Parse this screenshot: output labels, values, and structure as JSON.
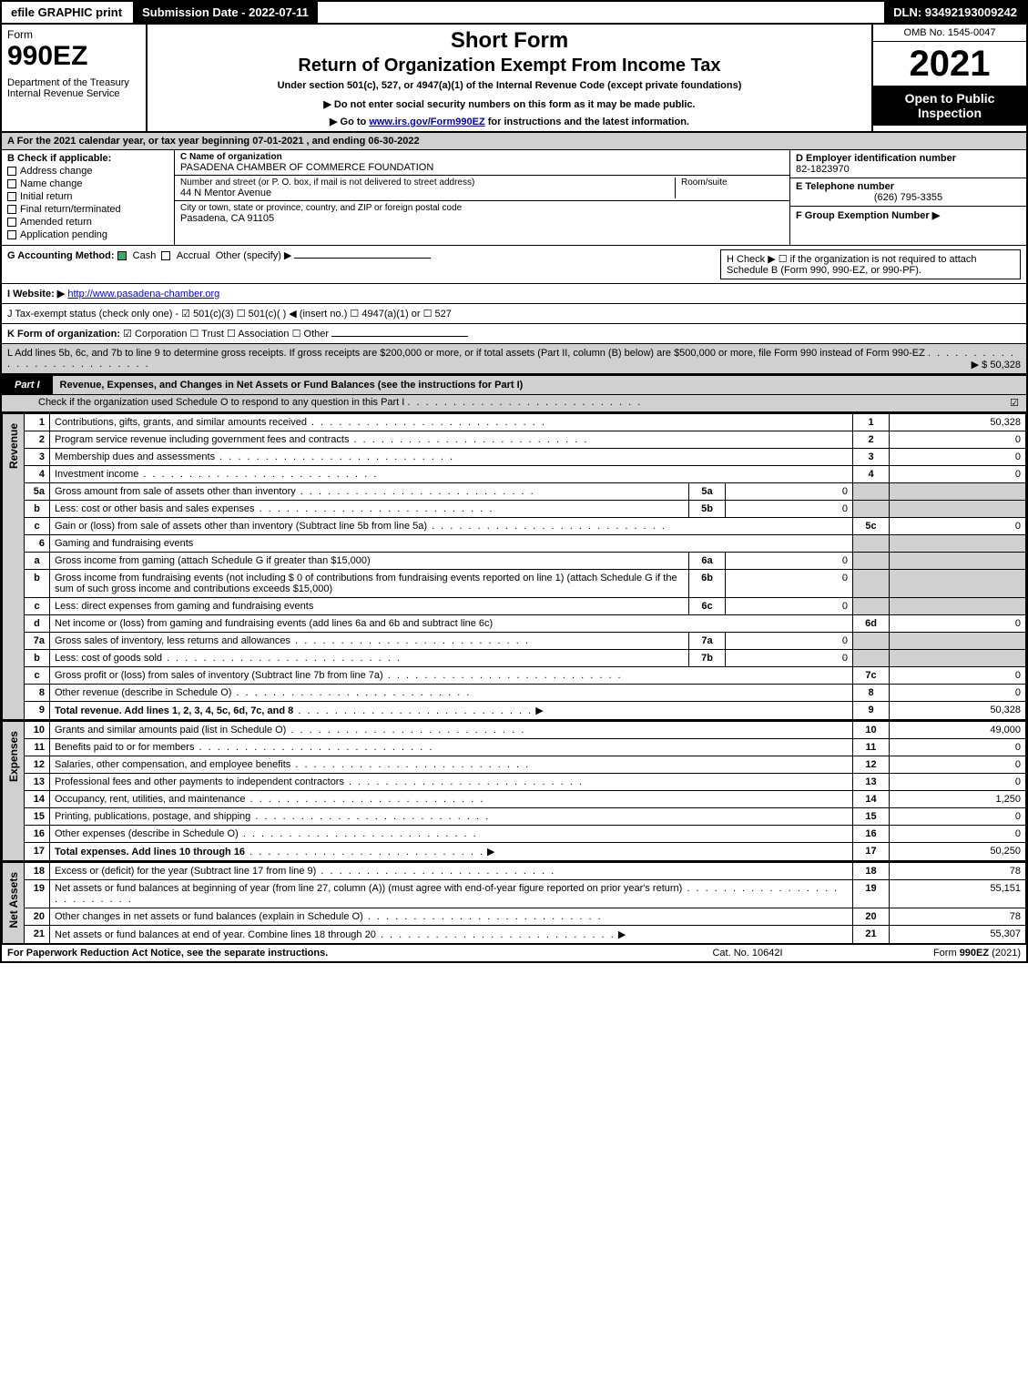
{
  "topbar": {
    "efile": "efile GRAPHIC print",
    "sub_label": "Submission Date - 2022-07-11",
    "dln": "DLN: 93492193009242"
  },
  "header": {
    "form_word": "Form",
    "form_no": "990EZ",
    "dept": "Department of the Treasury\nInternal Revenue Service",
    "short_form": "Short Form",
    "title": "Return of Organization Exempt From Income Tax",
    "under": "Under section 501(c), 527, or 4947(a)(1) of the Internal Revenue Code (except private foundations)",
    "note": "▶ Do not enter social security numbers on this form as it may be made public.",
    "goto_pre": "▶ Go to ",
    "goto_link": "www.irs.gov/Form990EZ",
    "goto_post": " for instructions and the latest information.",
    "omb": "OMB No. 1545-0047",
    "year": "2021",
    "badge": "Open to Public Inspection"
  },
  "secA": "A  For the 2021 calendar year, or tax year beginning 07-01-2021 , and ending 06-30-2022",
  "B": {
    "label": "B  Check if applicable:",
    "opts": [
      "Address change",
      "Name change",
      "Initial return",
      "Final return/terminated",
      "Amended return",
      "Application pending"
    ]
  },
  "C": {
    "name_lbl": "C Name of organization",
    "name": "PASADENA CHAMBER OF COMMERCE FOUNDATION",
    "street_lbl": "Number and street (or P. O. box, if mail is not delivered to street address)",
    "room_lbl": "Room/suite",
    "street": "44 N Mentor Avenue",
    "city_lbl": "City or town, state or province, country, and ZIP or foreign postal code",
    "city": "Pasadena, CA  91105"
  },
  "D": {
    "lbl": "D Employer identification number",
    "val": "82-1823970"
  },
  "E": {
    "lbl": "E Telephone number",
    "val": "(626) 795-3355"
  },
  "F": {
    "lbl": "F Group Exemption Number  ▶",
    "val": ""
  },
  "G": {
    "lbl": "G Accounting Method:",
    "cash": "Cash",
    "accrual": "Accrual",
    "other": "Other (specify) ▶"
  },
  "H": {
    "text": "H   Check ▶  ☐  if the organization is not required to attach Schedule B (Form 990, 990-EZ, or 990-PF)."
  },
  "I": {
    "lbl": "I Website: ▶",
    "val": "http://www.pasadena-chamber.org"
  },
  "J": {
    "text": "J Tax-exempt status (check only one) - ☑ 501(c)(3)  ☐ 501(c)(  ) ◀ (insert no.)  ☐ 4947(a)(1) or  ☐ 527"
  },
  "K": {
    "lbl": "K Form of organization:",
    "opts": "☑ Corporation   ☐ Trust   ☐ Association   ☐ Other"
  },
  "L": {
    "text": "L Add lines 5b, 6c, and 7b to line 9 to determine gross receipts. If gross receipts are $200,000 or more, or if total assets (Part II, column (B) below) are $500,000 or more, file Form 990 instead of Form 990-EZ",
    "amt": "▶ $ 50,328"
  },
  "part1": {
    "tag": "Part I",
    "title": "Revenue, Expenses, and Changes in Net Assets or Fund Balances (see the instructions for Part I)",
    "scheduleO": "Check if the organization used Schedule O to respond to any question in this Part I",
    "scheduleO_checked": "☑"
  },
  "sections": {
    "revenue_label": "Revenue",
    "expenses_label": "Expenses",
    "netassets_label": "Net Assets"
  },
  "rows": {
    "r1": {
      "n": "1",
      "d": "Contributions, gifts, grants, and similar amounts received",
      "ln": "1",
      "v": "50,328"
    },
    "r2": {
      "n": "2",
      "d": "Program service revenue including government fees and contracts",
      "ln": "2",
      "v": "0"
    },
    "r3": {
      "n": "3",
      "d": "Membership dues and assessments",
      "ln": "3",
      "v": "0"
    },
    "r4": {
      "n": "4",
      "d": "Investment income",
      "ln": "4",
      "v": "0"
    },
    "r5a": {
      "n": "5a",
      "d": "Gross amount from sale of assets other than inventory",
      "il": "5a",
      "iv": "0"
    },
    "r5b": {
      "n": "b",
      "d": "Less: cost or other basis and sales expenses",
      "il": "5b",
      "iv": "0"
    },
    "r5c": {
      "n": "c",
      "d": "Gain or (loss) from sale of assets other than inventory (Subtract line 5b from line 5a)",
      "ln": "5c",
      "v": "0"
    },
    "r6": {
      "n": "6",
      "d": "Gaming and fundraising events"
    },
    "r6a": {
      "n": "a",
      "d": "Gross income from gaming (attach Schedule G if greater than $15,000)",
      "il": "6a",
      "iv": "0"
    },
    "r6b": {
      "n": "b",
      "d": "Gross income from fundraising events (not including $ 0            of contributions from fundraising events reported on line 1) (attach Schedule G if the sum of such gross income and contributions exceeds $15,000)",
      "il": "6b",
      "iv": "0"
    },
    "r6c": {
      "n": "c",
      "d": "Less: direct expenses from gaming and fundraising events",
      "il": "6c",
      "iv": "0"
    },
    "r6d": {
      "n": "d",
      "d": "Net income or (loss) from gaming and fundraising events (add lines 6a and 6b and subtract line 6c)",
      "ln": "6d",
      "v": "0"
    },
    "r7a": {
      "n": "7a",
      "d": "Gross sales of inventory, less returns and allowances",
      "il": "7a",
      "iv": "0"
    },
    "r7b": {
      "n": "b",
      "d": "Less: cost of goods sold",
      "il": "7b",
      "iv": "0"
    },
    "r7c": {
      "n": "c",
      "d": "Gross profit or (loss) from sales of inventory (Subtract line 7b from line 7a)",
      "ln": "7c",
      "v": "0"
    },
    "r8": {
      "n": "8",
      "d": "Other revenue (describe in Schedule O)",
      "ln": "8",
      "v": "0"
    },
    "r9": {
      "n": "9",
      "d": "Total revenue. Add lines 1, 2, 3, 4, 5c, 6d, 7c, and 8",
      "ln": "9",
      "v": "50,328",
      "bold": true,
      "arrow": true
    },
    "r10": {
      "n": "10",
      "d": "Grants and similar amounts paid (list in Schedule O)",
      "ln": "10",
      "v": "49,000"
    },
    "r11": {
      "n": "11",
      "d": "Benefits paid to or for members",
      "ln": "11",
      "v": "0"
    },
    "r12": {
      "n": "12",
      "d": "Salaries, other compensation, and employee benefits",
      "ln": "12",
      "v": "0"
    },
    "r13": {
      "n": "13",
      "d": "Professional fees and other payments to independent contractors",
      "ln": "13",
      "v": "0"
    },
    "r14": {
      "n": "14",
      "d": "Occupancy, rent, utilities, and maintenance",
      "ln": "14",
      "v": "1,250"
    },
    "r15": {
      "n": "15",
      "d": "Printing, publications, postage, and shipping",
      "ln": "15",
      "v": "0"
    },
    "r16": {
      "n": "16",
      "d": "Other expenses (describe in Schedule O)",
      "ln": "16",
      "v": "0"
    },
    "r17": {
      "n": "17",
      "d": "Total expenses. Add lines 10 through 16",
      "ln": "17",
      "v": "50,250",
      "bold": true,
      "arrow": true
    },
    "r18": {
      "n": "18",
      "d": "Excess or (deficit) for the year (Subtract line 17 from line 9)",
      "ln": "18",
      "v": "78"
    },
    "r19": {
      "n": "19",
      "d": "Net assets or fund balances at beginning of year (from line 27, column (A)) (must agree with end-of-year figure reported on prior year's return)",
      "ln": "19",
      "v": "55,151"
    },
    "r20": {
      "n": "20",
      "d": "Other changes in net assets or fund balances (explain in Schedule O)",
      "ln": "20",
      "v": "78"
    },
    "r21": {
      "n": "21",
      "d": "Net assets or fund balances at end of year. Combine lines 18 through 20",
      "ln": "21",
      "v": "55,307",
      "arrow": true
    }
  },
  "footer": {
    "left": "For Paperwork Reduction Act Notice, see the separate instructions.",
    "center": "Cat. No. 10642I",
    "right": "Form 990-EZ (2021)"
  },
  "colors": {
    "black": "#000000",
    "grey": "#d0d0d0",
    "link": "#0000cc",
    "check_green": "#33aa66"
  }
}
